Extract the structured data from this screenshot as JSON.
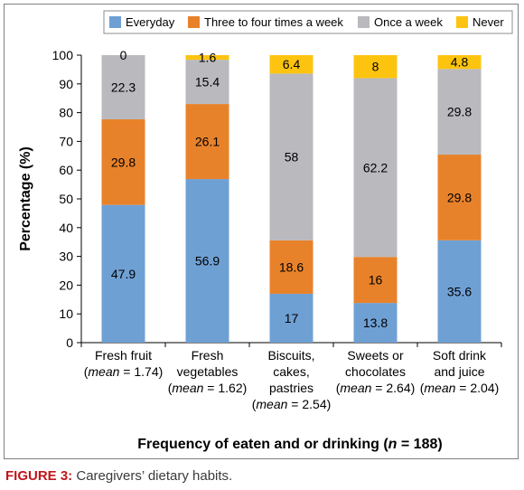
{
  "caption": {
    "label": "FIGURE 3:",
    "text": "Caregivers’ dietary habits."
  },
  "chart_data": {
    "type": "bar",
    "stacked": true,
    "categories": [
      [
        "Fresh fruit",
        "(mean = 1.74)"
      ],
      [
        "Fresh",
        "vegetables",
        "(mean = 1.62)"
      ],
      [
        "Biscuits,",
        "cakes,",
        "pastries",
        "(mean = 2.54)"
      ],
      [
        "Sweets or",
        "chocolates",
        "(mean = 2.64)"
      ],
      [
        "Soft drink",
        "and juice",
        "(mean = 2.04)"
      ]
    ],
    "series": [
      {
        "name": "Everyday",
        "color": "#6fa0d4",
        "values": [
          47.9,
          56.9,
          17,
          13.8,
          35.6
        ]
      },
      {
        "name": "Three to four times a week",
        "color": "#e8822a",
        "values": [
          29.8,
          26.1,
          18.6,
          16,
          29.8
        ]
      },
      {
        "name": "Once a week",
        "color": "#b9b9be",
        "values": [
          22.3,
          15.4,
          58,
          62.2,
          29.8
        ]
      },
      {
        "name": "Never",
        "color": "#fdc40f",
        "values": [
          0,
          1.6,
          6.4,
          8,
          4.8
        ]
      }
    ],
    "xlabel": "Frequency of eaten and or drinking (n = 188)",
    "ylabel": "Percentage (%)",
    "ylim": [
      0,
      100
    ],
    "yticks": [
      0,
      10,
      20,
      30,
      40,
      50,
      60,
      70,
      80,
      90,
      100
    ],
    "grid": false,
    "legend": "top"
  }
}
